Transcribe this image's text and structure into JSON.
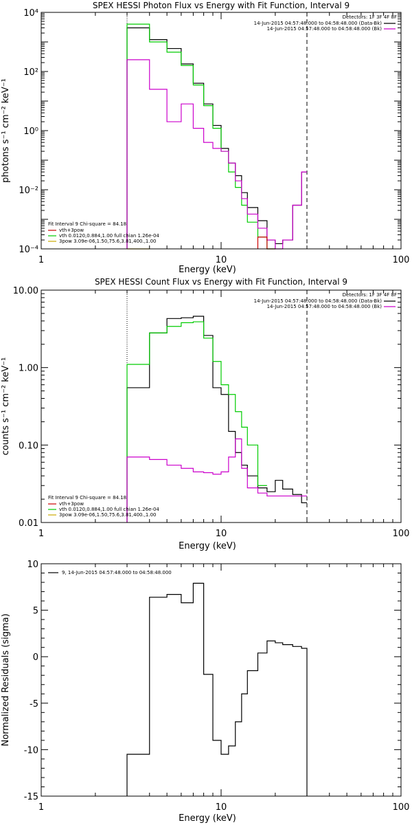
{
  "chart_data": [
    {
      "type": "line",
      "title": "SPEX HESSI Photon Flux vs Energy with Fit Function, Interval 9",
      "xlabel": "Energy (keV)",
      "ylabel": "photons s⁻¹ cm⁻² keV⁻¹",
      "xscale": "log",
      "yscale": "log",
      "xlim": [
        1,
        100
      ],
      "ylim": [
        0.0001,
        10000
      ],
      "x_ticks": [
        "1",
        "10",
        "100"
      ],
      "y_ticks": [
        "10⁻⁴",
        "10⁻²",
        "10⁰",
        "10²",
        "10⁴"
      ],
      "detectors_label": "Detectors: 1F 3F 4F 8F",
      "legend_right": [
        {
          "text": "14-Jun-2015 04:57:48.000 to 04:58:48.000 (Data-Bk)",
          "color": "#000000"
        },
        {
          "text": "14-Jun-2015 04:57:48.000 to 04:58:48.000 (Bk)",
          "color": "#cc00cc"
        }
      ],
      "fit_header": "Fit Interval 9    Chi-square = 84.18",
      "legend_left": [
        {
          "text": "vth+3pow",
          "color": "#cc0000"
        },
        {
          "text": "vth 0.0120,0.884,1.00   full chian 1.26e-04",
          "color": "#00cc00"
        },
        {
          "text": "3pow 3.09e-06,1.50,75.6,3.81,400.,1.00",
          "color": "#ccaa00"
        }
      ],
      "vlines": [
        {
          "x": 3,
          "style": "dotted"
        },
        {
          "x": 30,
          "style": "dashed"
        }
      ],
      "series": [
        {
          "color": "#000000",
          "edges": [
            3,
            4,
            5,
            6,
            7,
            8,
            9,
            10,
            11,
            12,
            13,
            14,
            16,
            18,
            20,
            22,
            25,
            28,
            30
          ],
          "values": [
            3000,
            1200,
            600,
            180,
            40,
            8,
            1.5,
            0.25,
            0.08,
            0.03,
            0.008,
            0.0025,
            0.0009,
            0.0002,
            0.00015,
            0.0002,
            0.003,
            0.04
          ]
        },
        {
          "color": "#00cc00",
          "edges": [
            3,
            4,
            5,
            6,
            7,
            8,
            9,
            10,
            11,
            12,
            13,
            14,
            16,
            18,
            20
          ],
          "values": [
            4000,
            1000,
            450,
            160,
            35,
            7,
            1.2,
            0.2,
            0.04,
            0.012,
            0.003,
            0.0008,
            0.00025,
            0.0001
          ]
        },
        {
          "color": "#cc00cc",
          "edges": [
            3,
            4,
            5,
            6,
            7,
            8,
            9,
            10,
            11,
            12,
            13,
            14,
            16,
            18,
            20,
            22,
            25,
            28,
            30
          ],
          "values": [
            250,
            25,
            2,
            8,
            1.2,
            0.4,
            0.25,
            0.2,
            0.08,
            0.02,
            0.005,
            0.0015,
            0.0005,
            0.0002,
            0.0001,
            0.0002,
            0.003,
            0.04
          ]
        },
        {
          "color": "#cc0000",
          "edges": [
            16,
            18,
            20
          ],
          "values": [
            0.00025,
            0.0001
          ]
        },
        {
          "color": "#ccaa00",
          "edges": [
            3,
            4
          ],
          "values": [
            0.0001
          ]
        }
      ]
    },
    {
      "type": "line",
      "title": "SPEX HESSI Count Flux vs Energy with Fit Function, Interval 9",
      "xlabel": "Energy (keV)",
      "ylabel": "counts s⁻¹ cm⁻² keV⁻¹",
      "xscale": "log",
      "yscale": "log",
      "xlim": [
        1,
        100
      ],
      "ylim": [
        0.01,
        10
      ],
      "x_ticks": [
        "1",
        "10",
        "100"
      ],
      "y_ticks": [
        "0.01",
        "0.10",
        "1.00",
        "10.00"
      ],
      "detectors_label": "Detectors: 1F 3F 4F 8F",
      "legend_right": [
        {
          "text": "14-Jun-2015 04:57:48.000 to 04:58:48.000 (Data-Bk)",
          "color": "#000000"
        },
        {
          "text": "14-Jun-2015 04:57:48.000 to 04:58:48.000 (Bk)",
          "color": "#cc00cc"
        }
      ],
      "fit_header": "Fit Interval 9    Chi-square = 84.18",
      "legend_left": [
        {
          "text": "vth+3pow",
          "color": "#cc0000"
        },
        {
          "text": "vth 0.0120,0.884,1.00   full chian 1.26e-04",
          "color": "#00cc00"
        },
        {
          "text": "3pow 3.09e-06,1.50,75.6,3.81,400.,1.00",
          "color": "#ccaa00"
        }
      ],
      "vlines": [
        {
          "x": 3,
          "style": "dotted"
        },
        {
          "x": 30,
          "style": "dashed"
        }
      ],
      "series": [
        {
          "color": "#000000",
          "edges": [
            3,
            4,
            5,
            6,
            7,
            8,
            9,
            10,
            11,
            12,
            13,
            14,
            16,
            18,
            20,
            22,
            25,
            28,
            30
          ],
          "values": [
            0.55,
            2.8,
            4.3,
            4.4,
            4.6,
            2.6,
            0.55,
            0.45,
            0.15,
            0.08,
            0.055,
            0.04,
            0.028,
            0.025,
            0.035,
            0.027,
            0.023,
            0.018
          ]
        },
        {
          "color": "#00cc00",
          "edges": [
            3,
            4,
            5,
            6,
            7,
            8,
            9,
            10,
            11,
            12,
            13,
            14,
            16,
            18
          ],
          "values": [
            1.1,
            2.8,
            3.4,
            3.8,
            3.9,
            2.4,
            1.2,
            0.6,
            0.45,
            0.27,
            0.17,
            0.1,
            0.03
          ]
        },
        {
          "color": "#cc00cc",
          "edges": [
            3,
            4,
            5,
            6,
            7,
            8,
            9,
            10,
            11,
            12,
            13,
            14,
            16,
            18,
            20,
            22,
            25,
            28,
            30
          ],
          "values": [
            0.07,
            0.065,
            0.055,
            0.05,
            0.045,
            0.044,
            0.042,
            0.045,
            0.07,
            0.12,
            0.05,
            0.028,
            0.024,
            0.022,
            0.022,
            0.022,
            0.022,
            0.022
          ]
        }
      ]
    },
    {
      "type": "line",
      "title": "",
      "xlabel": "Energy (keV)",
      "ylabel": "Normalized Residuals (sigma)",
      "xscale": "log",
      "yscale": "linear",
      "xlim": [
        1,
        100
      ],
      "ylim": [
        -15,
        10
      ],
      "x_ticks": [
        "1",
        "10",
        "100"
      ],
      "y_ticks": [
        "-15",
        "-10",
        "-5",
        "0",
        "5",
        "10"
      ],
      "legend": "9, 14-Jun-2015 04:57:48.000 to 04:58:48.000",
      "series": [
        {
          "color": "#000000",
          "edges": [
            3,
            4,
            5,
            6,
            7,
            8,
            9,
            10,
            11,
            12,
            13,
            14,
            16,
            18,
            20,
            22,
            25,
            28,
            30
          ],
          "values": [
            -10.5,
            6.4,
            6.7,
            5.8,
            7.9,
            -1.9,
            -9.0,
            -10.5,
            -9.6,
            -7.0,
            -4.0,
            -1.5,
            0.4,
            1.7,
            1.5,
            1.3,
            1.1,
            0.9
          ]
        }
      ]
    }
  ]
}
